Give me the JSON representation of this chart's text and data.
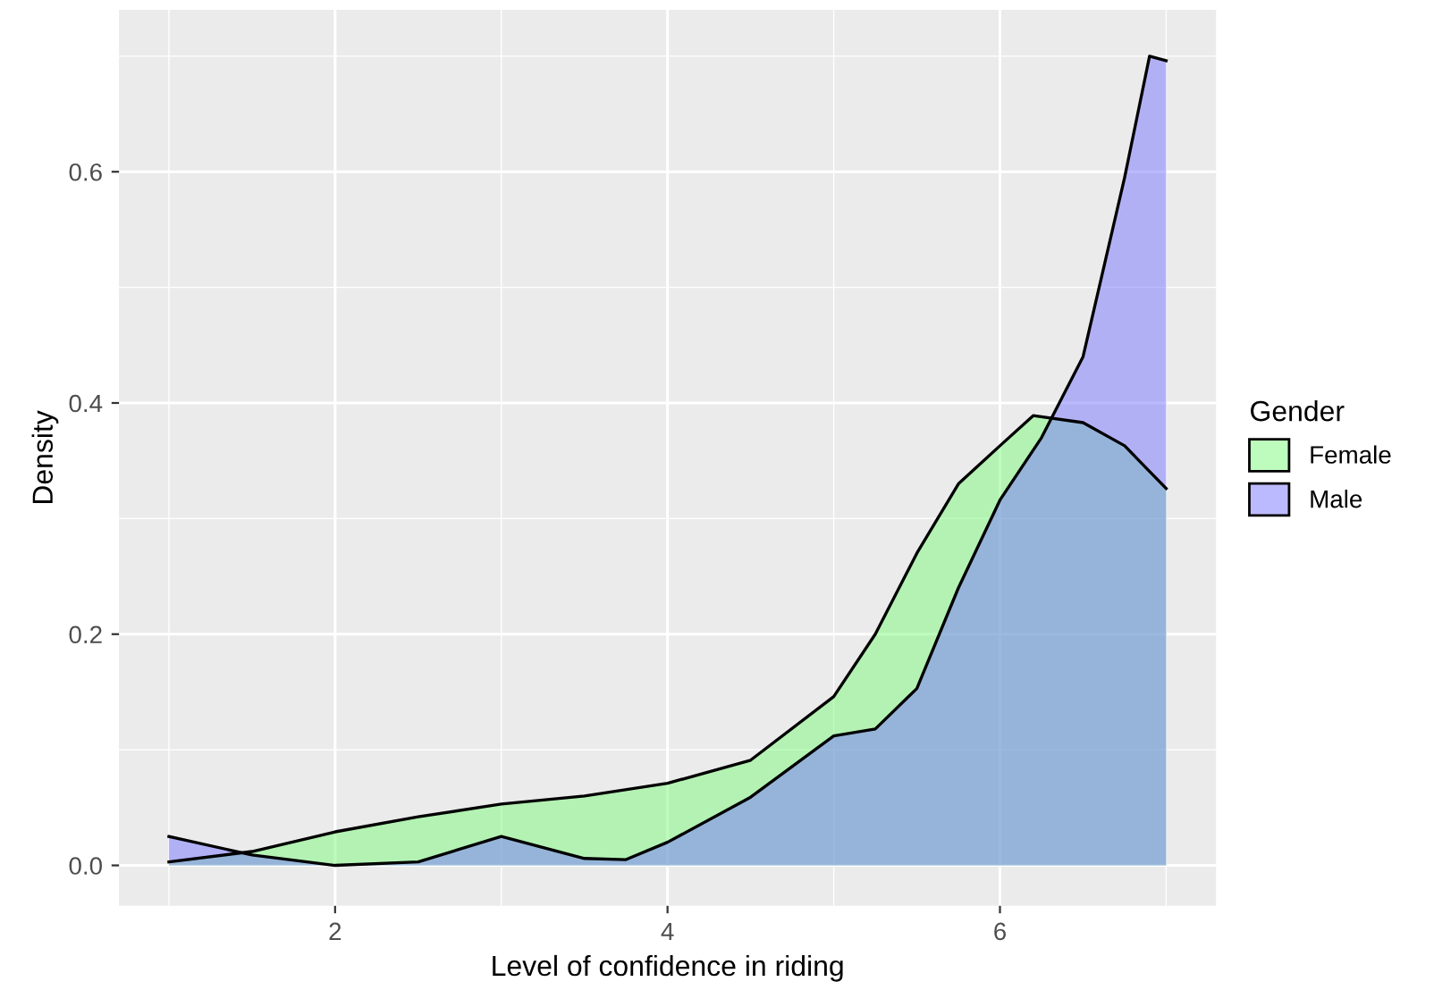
{
  "chart_data": {
    "type": "area",
    "xlabel": "Level of confidence in riding",
    "ylabel": "Density",
    "legend_title": "Gender",
    "legend": "right",
    "grid": true,
    "xlim": [
      0.7,
      7.3
    ],
    "ylim": [
      -0.035,
      0.74
    ],
    "xticks": [
      2,
      4,
      6
    ],
    "yticks": [
      {
        "value": 0,
        "label": "0.0"
      },
      {
        "value": 0.2,
        "label": "0.2"
      },
      {
        "value": 0.4,
        "label": "0.4"
      },
      {
        "value": 0.6,
        "label": "0.6"
      }
    ],
    "series": [
      {
        "name": "Female",
        "color": "#b3f2b3",
        "x": [
          1,
          1.5,
          2,
          2.5,
          3,
          3.5,
          4,
          4.5,
          5,
          5.25,
          5.5,
          5.75,
          6,
          6.2,
          6.5,
          6.75,
          7
        ],
        "values": [
          0.003,
          0.012,
          0.029,
          0.042,
          0.053,
          0.06,
          0.071,
          0.091,
          0.146,
          0.2,
          0.27,
          0.33,
          0.363,
          0.389,
          0.383,
          0.363,
          0.326
        ]
      },
      {
        "name": "Male",
        "color": "#b2b0f7",
        "x": [
          1,
          1.5,
          2,
          2.5,
          3,
          3.5,
          3.75,
          4,
          4.5,
          5,
          5.25,
          5.5,
          5.75,
          6,
          6.25,
          6.5,
          6.75,
          6.9,
          7
        ],
        "values": [
          0.025,
          0.009,
          0.0,
          0.003,
          0.025,
          0.006,
          0.005,
          0.02,
          0.059,
          0.112,
          0.118,
          0.153,
          0.24,
          0.316,
          0.37,
          0.44,
          0.595,
          0.7,
          0.696
        ]
      }
    ]
  }
}
